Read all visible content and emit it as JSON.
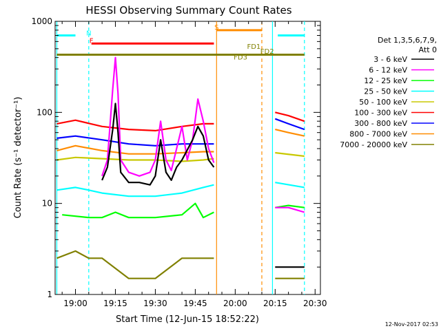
{
  "chart_data": {
    "type": "line",
    "title": "HESSI Observing Summary Count Rates",
    "xlabel": "Start Time (12-Jun-15 18:52:22)",
    "ylabel": "Count Rate (s⁻¹ detector⁻¹)",
    "yscale": "log",
    "xlim": [
      "18:52:22",
      "20:32"
    ],
    "ylim": [
      1,
      1000
    ],
    "grid": false,
    "x_tick_labels": [
      "19:00",
      "19:15",
      "19:30",
      "19:45",
      "20:00",
      "20:15",
      "20:30"
    ],
    "x_tick_values": [
      "19:00",
      "19:15",
      "19:30",
      "19:45",
      "20:00",
      "20:15",
      "20:30"
    ],
    "y_tick_labels": [
      "1",
      "10",
      "100",
      "1000"
    ],
    "y_tick_values": [
      1,
      10,
      100,
      1000
    ],
    "legend_header": [
      "Det 1,3,5,6,7,9,",
      "Att 0"
    ],
    "legend_placement": "right",
    "footer": "12-Nov-2017 02:53",
    "series": [
      {
        "name": "3 - 6 keV",
        "color": "#000000",
        "x": [
          "19:10",
          "19:12",
          "19:14",
          "19:15",
          "19:16",
          "19:17",
          "19:20",
          "19:24",
          "19:28",
          "19:30",
          "19:32",
          "19:34",
          "19:36",
          "19:38",
          "19:40",
          "19:44",
          "19:46",
          "19:48",
          "19:50",
          "19:52",
          "20:15",
          "20:20",
          "20:26"
        ],
        "y": [
          18,
          25,
          65,
          125,
          60,
          22,
          17,
          17,
          16,
          20,
          50,
          22,
          18,
          25,
          30,
          50,
          70,
          55,
          30,
          25,
          2,
          2,
          2
        ]
      },
      {
        "name": "6 - 12 keV",
        "color": "#ff00ff",
        "x": [
          "19:10",
          "19:12",
          "19:14",
          "19:15",
          "19:16",
          "19:17",
          "19:20",
          "19:24",
          "19:28",
          "19:30",
          "19:32",
          "19:34",
          "19:36",
          "19:38",
          "19:40",
          "19:42",
          "19:44",
          "19:46",
          "19:48",
          "19:50",
          "19:52",
          "20:15",
          "20:20",
          "20:26"
        ],
        "y": [
          20,
          30,
          180,
          400,
          160,
          30,
          22,
          20,
          22,
          30,
          80,
          30,
          23,
          40,
          70,
          30,
          50,
          140,
          80,
          40,
          28,
          9,
          9,
          8
        ]
      },
      {
        "name": "12 - 25 keV",
        "color": "#00ff00",
        "x": [
          "18:55",
          "19:05",
          "19:10",
          "19:15",
          "19:20",
          "19:30",
          "19:40",
          "19:45",
          "19:48",
          "19:52",
          "20:15",
          "20:20",
          "20:26"
        ],
        "y": [
          7.5,
          7,
          7,
          8,
          7,
          7,
          7.5,
          10,
          7,
          8,
          9,
          9.5,
          9
        ]
      },
      {
        "name": "25 - 50 keV",
        "color": "#00ffff",
        "x": [
          "18:53",
          "19:00",
          "19:05",
          "19:10",
          "19:20",
          "19:30",
          "19:40",
          "19:48",
          "19:52",
          "20:15",
          "20:26"
        ],
        "y": [
          14,
          15,
          14,
          13,
          12,
          12,
          13,
          15,
          16,
          17,
          15
        ]
      },
      {
        "name": "50 - 100 keV",
        "color": "#c8c800",
        "x": [
          "18:53",
          "19:00",
          "19:10",
          "19:20",
          "19:30",
          "19:40",
          "19:48",
          "19:52",
          "20:15",
          "20:26"
        ],
        "y": [
          30,
          32,
          31,
          30,
          30,
          29,
          30,
          31,
          36,
          33
        ]
      },
      {
        "name": "100 - 300 keV",
        "color": "#ff0000",
        "x": [
          "18:53",
          "19:00",
          "19:10",
          "19:20",
          "19:30",
          "19:40",
          "19:48",
          "19:52",
          "20:15",
          "20:20",
          "20:26"
        ],
        "y": [
          75,
          82,
          70,
          65,
          63,
          70,
          75,
          75,
          100,
          92,
          80
        ]
      },
      {
        "name": "300 - 800 keV",
        "color": "#0000ff",
        "x": [
          "18:53",
          "19:00",
          "19:10",
          "19:20",
          "19:30",
          "19:40",
          "19:48",
          "19:52",
          "20:15",
          "20:20",
          "20:26"
        ],
        "y": [
          52,
          55,
          50,
          45,
          43,
          45,
          45,
          45,
          85,
          75,
          65
        ]
      },
      {
        "name": "800 - 7000 keV",
        "color": "#ff8c00",
        "x": [
          "18:53",
          "19:00",
          "19:10",
          "19:20",
          "19:30",
          "19:40",
          "19:48",
          "19:52",
          "20:15",
          "20:20",
          "20:26"
        ],
        "y": [
          38,
          43,
          38,
          35,
          35,
          36,
          37,
          37,
          65,
          60,
          55
        ]
      },
      {
        "name": "7000 - 20000 keV",
        "color": "#808000",
        "x": [
          "18:53",
          "19:00",
          "19:05",
          "19:10",
          "19:20",
          "19:30",
          "19:40",
          "19:48",
          "19:52",
          "20:15",
          "20:26"
        ],
        "y": [
          2.5,
          3,
          2.5,
          2.5,
          1.5,
          1.5,
          2.5,
          2.5,
          2.5,
          1.5,
          1.5
        ]
      }
    ],
    "annotations": [
      {
        "label": "N",
        "color": "#00ffff",
        "x": "19:05",
        "y": 700
      },
      {
        "label": "F",
        "color": "#ff0000",
        "x": "19:06",
        "y": 580
      },
      {
        "label": "S",
        "color": "#ff8c00",
        "x": "19:53",
        "y": 810
      },
      {
        "label": "FD1",
        "color": "#808000",
        "x": "20:07",
        "y": 500
      },
      {
        "label": "FD2",
        "color": "#808000",
        "x": "20:12",
        "y": 440
      },
      {
        "label": "FD3",
        "color": "#808000",
        "x": "20:02",
        "y": 380
      }
    ],
    "bars": [
      {
        "name": "N",
        "color": "#00ffff",
        "segments": [
          [
            "18:53",
            "19:00"
          ],
          [
            "20:16",
            "20:26"
          ]
        ],
        "y": 700
      },
      {
        "name": "F",
        "color": "#ff0000",
        "segments": [
          [
            "19:06",
            "19:52"
          ]
        ],
        "y": 570
      },
      {
        "name": "S",
        "color": "#ff8c00",
        "segments": [
          [
            "19:53",
            "20:10"
          ]
        ],
        "y": 800
      },
      {
        "name": "FD",
        "color": "#808000",
        "segments": [
          [
            "18:53",
            "20:26"
          ]
        ],
        "y": 430
      }
    ],
    "vertical_markers": [
      {
        "color": "#00ffff",
        "x": "18:53",
        "style": "solid"
      },
      {
        "color": "#00ffff",
        "x": "19:05",
        "style": "dashed"
      },
      {
        "color": "#ff8c00",
        "x": "19:53",
        "style": "solid"
      },
      {
        "color": "#ff8c00",
        "x": "20:10",
        "style": "dashed"
      },
      {
        "color": "#00ffff",
        "x": "20:14",
        "style": "solid"
      },
      {
        "color": "#00ffff",
        "x": "20:26",
        "style": "dashed"
      }
    ]
  }
}
